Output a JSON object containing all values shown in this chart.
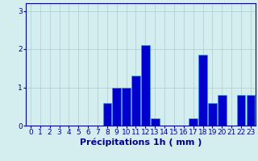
{
  "hours": [
    0,
    1,
    2,
    3,
    4,
    5,
    6,
    7,
    8,
    9,
    10,
    11,
    12,
    13,
    14,
    15,
    16,
    17,
    18,
    19,
    20,
    21,
    22,
    23
  ],
  "values": [
    0,
    0,
    0,
    0,
    0,
    0,
    0,
    0,
    0.6,
    1.0,
    1.0,
    1.3,
    2.1,
    0.2,
    0,
    0,
    0,
    0.2,
    1.85,
    0.6,
    0.8,
    0,
    0.8,
    0.8
  ],
  "bar_color": "#0000cc",
  "bar_edge_color": "#3399ff",
  "background_color": "#d4eef0",
  "grid_color": "#aaccd0",
  "xlabel": "Précipitations 1h ( mm )",
  "ylim": [
    0,
    3.2
  ],
  "yticks": [
    0,
    1,
    2,
    3
  ],
  "xlim": [
    -0.5,
    23.5
  ],
  "tick_color": "#00008b",
  "xlabel_color": "#00008b",
  "xlabel_fontsize": 8,
  "tick_fontsize": 6.5
}
